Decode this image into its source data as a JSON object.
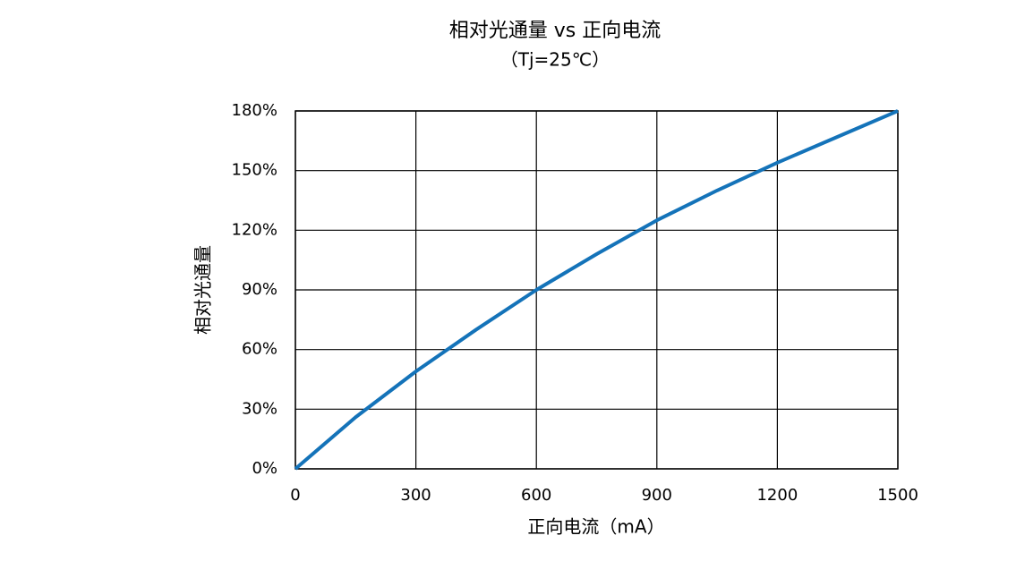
{
  "chart_data": {
    "type": "line",
    "title": "相对光通量 vs 正向电流",
    "subtitle": "（Tj=25℃）",
    "x_label": "正向电流（mA）",
    "y_label": "相对光通量",
    "x": [
      0,
      150,
      300,
      450,
      600,
      750,
      900,
      1050,
      1200,
      1350,
      1500
    ],
    "series": [
      {
        "color": "#1473b9",
        "values": [
          0,
          26,
          49,
          70,
          90,
          108,
          125,
          140,
          154,
          167,
          180
        ]
      }
    ],
    "xlim": [
      0,
      1500
    ],
    "xticks": [
      0,
      300,
      600,
      900,
      1200,
      1500
    ],
    "ylim": [
      0,
      180
    ],
    "yticks": [
      {
        "value": 0,
        "label": "0%"
      },
      {
        "value": 30,
        "label": "30%"
      },
      {
        "value": 60,
        "label": "60%"
      },
      {
        "value": 90,
        "label": "90%"
      },
      {
        "value": 120,
        "label": "120%"
      },
      {
        "value": 150,
        "label": "150%"
      },
      {
        "value": 180,
        "label": "180%"
      }
    ],
    "grid": true
  }
}
